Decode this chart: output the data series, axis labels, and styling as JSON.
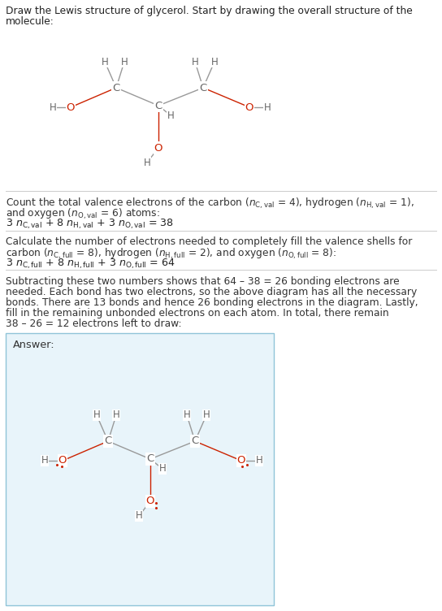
{
  "bg_color": "#ffffff",
  "answer_bg": "#e8f4fa",
  "answer_border": "#90c4d8",
  "carbon_color": "#666666",
  "oxygen_color": "#cc2200",
  "bond_color": "#999999",
  "oxygen_bond_color": "#cc2200",
  "title_line1": "Draw the Lewis structure of glycerol. Start by drawing the overall structure of the",
  "title_line2": "molecule:",
  "s1_line1": "Count the total valence electrons of the carbon (",
  "s1_line2": "and oxygen (",
  "s2_line1": "Calculate the number of electrons needed to completely fill the valence shells for",
  "s2_line2": "carbon (",
  "s3_lines": [
    "Subtracting these two numbers shows that 64 – 38 = 26 bonding electrons are",
    "needed. Each bond has two electrons, so the above diagram has all the necessary",
    "bonds. There are 13 bonds and hence 26 bonding electrons in the diagram. Lastly,",
    "fill in the remaining unbonded electrons on each atom. In total, there remain",
    "38 – 26 = 12 electrons left to draw:"
  ],
  "answer_label": "Answer:",
  "font_size_text": 8.8,
  "font_size_atom": 9.5,
  "font_size_h": 8.5
}
